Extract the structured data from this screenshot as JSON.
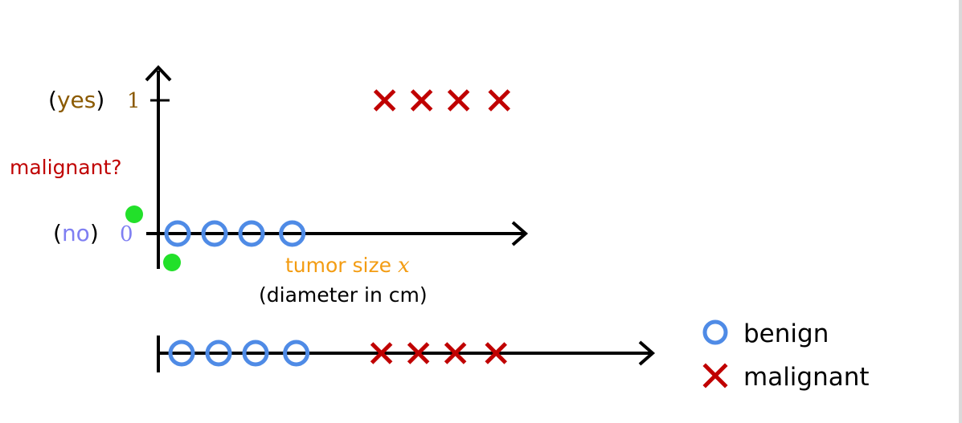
{
  "colors": {
    "benign": "#4f8be6",
    "malignant": "#c00000",
    "yes": "#8b5a00",
    "no": "#7f7ff2",
    "feature": "#f39c12",
    "question": "#c00000",
    "highlight": "#22e02a",
    "axis": "#000000"
  },
  "icons": {
    "benign": "circle-marker-icon",
    "malignant": "x-marker-icon"
  },
  "labels": {
    "yes_paren_open": "(",
    "yes_word": "yes",
    "yes_paren_close": ")",
    "one": "1",
    "question": "malignant?",
    "no_paren_open": "(",
    "no_word": "no",
    "no_paren_close": ")",
    "zero": "0",
    "feature_name": "tumor size ",
    "feature_var": "x",
    "feature_unit": "(diameter in cm)"
  },
  "legend": {
    "benign": "benign",
    "malignant": "malignant"
  },
  "chart_data": {
    "type": "scatter",
    "benign_x": [
      1,
      2,
      3,
      4.1
    ],
    "malignant_x": [
      6.6,
      7.6,
      8.6,
      9.7
    ],
    "ylim": [
      0,
      1
    ]
  }
}
